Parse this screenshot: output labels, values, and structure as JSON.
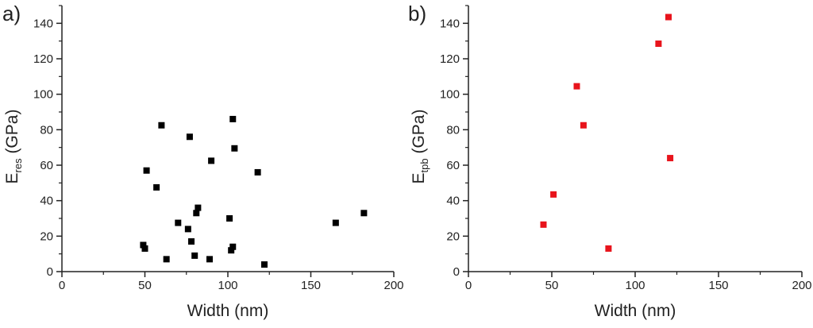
{
  "chart_data": [
    {
      "type": "scatter",
      "panel_label": "a)",
      "xlabel": "Width (nm)",
      "ylabel_main": "E",
      "ylabel_sub": "res",
      "ylabel_unit": "(GPa)",
      "xlim": [
        0,
        200
      ],
      "ylim": [
        0,
        150
      ],
      "xticks": [
        0,
        50,
        100,
        150,
        200
      ],
      "yticks": [
        0,
        20,
        40,
        60,
        80,
        100,
        120,
        140
      ],
      "marker_color": "#000000",
      "grid": false,
      "series": [
        {
          "points": [
            [
              49,
              15
            ],
            [
              50,
              13
            ],
            [
              51,
              57
            ],
            [
              57,
              47.5
            ],
            [
              60,
              82.5
            ],
            [
              63,
              7
            ],
            [
              70,
              27.5
            ],
            [
              76,
              24
            ],
            [
              77,
              76
            ],
            [
              78,
              17
            ],
            [
              80,
              9
            ],
            [
              81,
              33
            ],
            [
              82,
              36
            ],
            [
              89,
              7
            ],
            [
              90,
              62.5
            ],
            [
              101,
              30
            ],
            [
              102,
              12
            ],
            [
              103,
              14
            ],
            [
              103,
              86
            ],
            [
              104,
              69.5
            ],
            [
              118,
              56
            ],
            [
              122,
              4
            ],
            [
              165,
              27.5
            ],
            [
              182,
              33
            ]
          ]
        }
      ]
    },
    {
      "type": "scatter",
      "panel_label": "b)",
      "xlabel": "Width (nm)",
      "ylabel_main": "E",
      "ylabel_sub": "tpb",
      "ylabel_unit": "(GPa)",
      "xlim": [
        0,
        200
      ],
      "ylim": [
        0,
        150
      ],
      "xticks": [
        0,
        50,
        100,
        150,
        200
      ],
      "yticks": [
        0,
        20,
        40,
        60,
        80,
        100,
        120,
        140
      ],
      "marker_color": "#e8141c",
      "grid": false,
      "series": [
        {
          "points": [
            [
              45,
              26.5
            ],
            [
              51,
              43.5
            ],
            [
              65,
              104.5
            ],
            [
              69,
              82.5
            ],
            [
              84,
              13
            ],
            [
              114,
              128.5
            ],
            [
              120,
              143.5
            ],
            [
              121,
              64
            ]
          ]
        }
      ]
    }
  ]
}
